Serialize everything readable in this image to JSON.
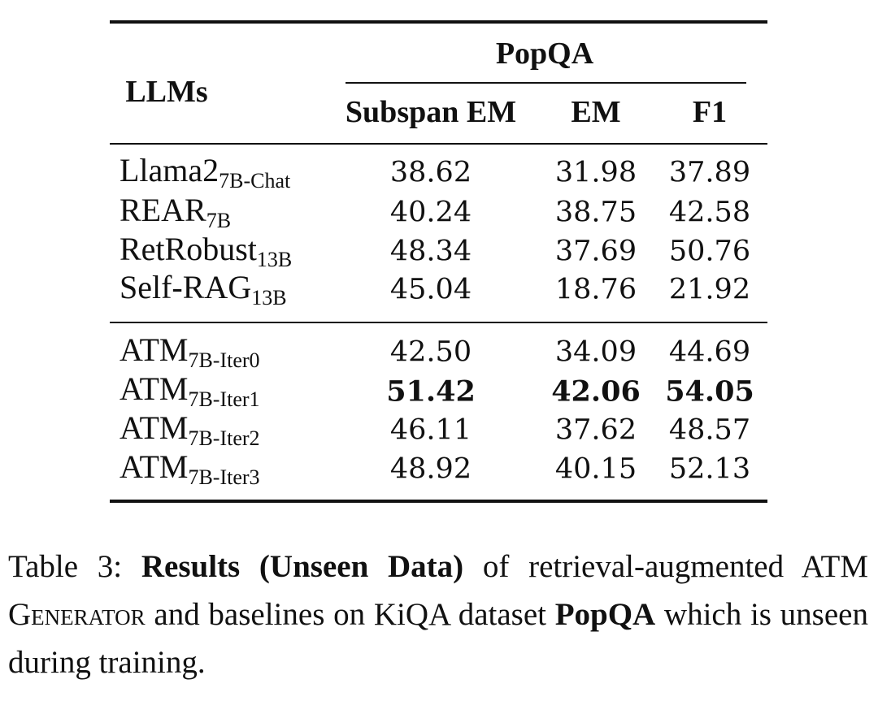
{
  "table": {
    "row_header": "LLMs",
    "group_header": "PopQA",
    "columns": [
      "Subspan EM",
      "EM",
      "F1"
    ],
    "sections": [
      [
        {
          "model": "Llama2",
          "sub": "7B-Chat",
          "values": [
            "38.62",
            "31.98",
            "37.89"
          ]
        },
        {
          "model": "REAR",
          "sub": "7B",
          "values": [
            "40.24",
            "38.75",
            "42.58"
          ]
        },
        {
          "model": "RetRobust",
          "sub": "13B",
          "values": [
            "48.34",
            "37.69",
            "50.76"
          ]
        },
        {
          "model": "Self-RAG",
          "sub": "13B",
          "values": [
            "45.04",
            "18.76",
            "21.92"
          ]
        }
      ],
      [
        {
          "model": "ATM",
          "sub": "7B-Iter0",
          "values": [
            "42.50",
            "34.09",
            "44.69"
          ]
        },
        {
          "model": "ATM",
          "sub": "7B-Iter1",
          "values": [
            "51.42",
            "42.06",
            "54.05"
          ],
          "bold": true
        },
        {
          "model": "ATM",
          "sub": "7B-Iter2",
          "values": [
            "46.11",
            "37.62",
            "48.57"
          ]
        },
        {
          "model": "ATM",
          "sub": "7B-Iter3",
          "values": [
            "48.92",
            "40.15",
            "52.13"
          ]
        }
      ]
    ]
  },
  "caption": [
    {
      "text": "Table 3: "
    },
    {
      "text": "Results (Unseen Data)",
      "style": "bold"
    },
    {
      "text": " of retrieval-augmented ATM "
    },
    {
      "text": "Generator",
      "style": "smallcaps"
    },
    {
      "text": " and baselines on KiQA dataset "
    },
    {
      "text": "PopQA",
      "style": "bold"
    },
    {
      "text": " which is unseen during training."
    }
  ]
}
